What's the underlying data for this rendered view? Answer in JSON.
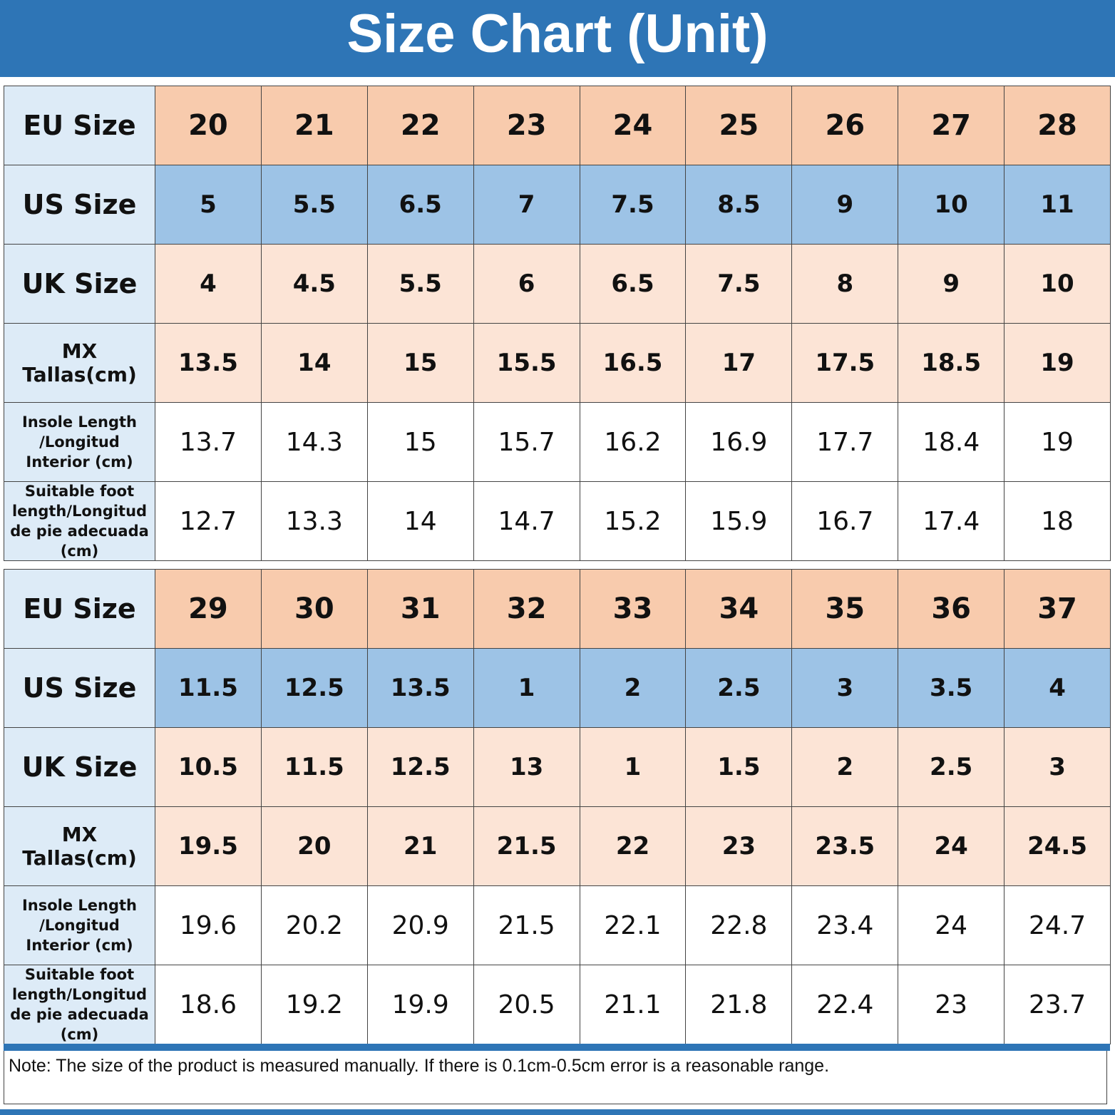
{
  "header": {
    "title": "Size Chart (Unit)"
  },
  "tables": [
    {
      "rows": [
        {
          "label": "EU Size",
          "values": [
            "20",
            "21",
            "22",
            "23",
            "24",
            "25",
            "26",
            "27",
            "28"
          ]
        },
        {
          "label": "US Size",
          "values": [
            "5",
            "5.5",
            "6.5",
            "7",
            "7.5",
            "8.5",
            "9",
            "10",
            "11"
          ]
        },
        {
          "label": "UK Size",
          "values": [
            "4",
            "4.5",
            "5.5",
            "6",
            "6.5",
            "7.5",
            "8",
            "9",
            "10"
          ]
        },
        {
          "label": "MX Tallas(cm)",
          "values": [
            "13.5",
            "14",
            "15",
            "15.5",
            "16.5",
            "17",
            "17.5",
            "18.5",
            "19"
          ]
        },
        {
          "label": "Insole Length /Longitud Interior (cm)",
          "values": [
            "13.7",
            "14.3",
            "15",
            "15.7",
            "16.2",
            "16.9",
            "17.7",
            "18.4",
            "19"
          ]
        },
        {
          "label": "Suitable foot length/Longitud de pie adecuada (cm)",
          "values": [
            "12.7",
            "13.3",
            "14",
            "14.7",
            "15.2",
            "15.9",
            "16.7",
            "17.4",
            "18"
          ]
        }
      ]
    },
    {
      "rows": [
        {
          "label": "EU Size",
          "values": [
            "29",
            "30",
            "31",
            "32",
            "33",
            "34",
            "35",
            "36",
            "37"
          ]
        },
        {
          "label": "US Size",
          "values": [
            "11.5",
            "12.5",
            "13.5",
            "1",
            "2",
            "2.5",
            "3",
            "3.5",
            "4"
          ]
        },
        {
          "label": "UK Size",
          "values": [
            "10.5",
            "11.5",
            "12.5",
            "13",
            "1",
            "1.5",
            "2",
            "2.5",
            "3"
          ]
        },
        {
          "label": "MX Tallas(cm)",
          "values": [
            "19.5",
            "20",
            "21",
            "21.5",
            "22",
            "23",
            "23.5",
            "24",
            "24.5"
          ]
        },
        {
          "label": "Insole Length /Longitud Interior (cm)",
          "values": [
            "19.6",
            "20.2",
            "20.9",
            "21.5",
            "22.1",
            "22.8",
            "23.4",
            "24",
            "24.7"
          ]
        },
        {
          "label": "Suitable foot length/Longitud de pie adecuada (cm)",
          "values": [
            "18.6",
            "19.2",
            "19.9",
            "20.5",
            "21.1",
            "21.8",
            "22.4",
            "23",
            "23.7"
          ]
        }
      ]
    }
  ],
  "note": "Note: The size of the product is measured manually. If there is 0.1cm-0.5cm error is a reasonable range."
}
